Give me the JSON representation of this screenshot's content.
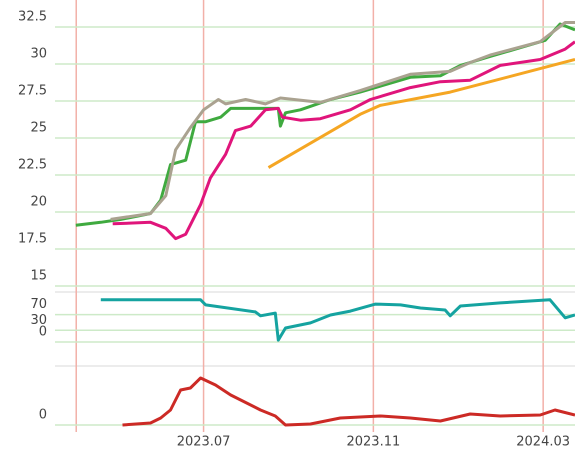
{
  "chart_data": [
    {
      "type": "line",
      "ylim": [
        14.73,
        34.32
      ],
      "yticks": [
        15,
        17.5,
        20,
        22.5,
        25,
        27.5,
        30,
        32.5
      ],
      "grid": true,
      "series": [
        {
          "color": "#3faa3f",
          "x": [
            2.99,
            3.58,
            4.05,
            4.75,
            4.99,
            5.22,
            5.58,
            5.81,
            6.05,
            6.4,
            6.64,
            7.34,
            7.76,
            7.81,
            7.93,
            8.28,
            8.99,
            9.69,
            10.16,
            10.87,
            11.58,
            12.05,
            12.75,
            13.46,
            14.05,
            14.4,
            14.75
          ],
          "values": [
            19.1,
            19.3,
            19.5,
            19.9,
            20.8,
            23.2,
            23.5,
            26.1,
            26.1,
            26.4,
            27.0,
            27.0,
            27.0,
            25.8,
            26.7,
            26.9,
            27.6,
            28.1,
            28.5,
            29.1,
            29.2,
            29.9,
            30.5,
            31.1,
            31.6,
            32.7,
            32.3
          ]
        },
        {
          "color": "#aaa290",
          "x": [
            3.81,
            4.75,
            5.11,
            5.34,
            5.69,
            6.0,
            6.35,
            6.52,
            6.99,
            7.46,
            7.81,
            8.75,
            9.69,
            10.87,
            11.81,
            12.28,
            12.75,
            13.93,
            14.52,
            14.75
          ],
          "values": [
            19.5,
            19.9,
            21.1,
            24.2,
            25.7,
            26.9,
            27.6,
            27.3,
            27.6,
            27.3,
            27.7,
            27.4,
            28.2,
            29.3,
            29.5,
            30.1,
            30.6,
            31.5,
            32.8,
            32.8
          ]
        },
        {
          "color": "#e0157b",
          "x": [
            3.86,
            4.75,
            5.11,
            5.34,
            5.58,
            5.93,
            6.16,
            6.52,
            6.75,
            7.11,
            7.46,
            7.76,
            7.86,
            8.28,
            8.75,
            9.46,
            9.93,
            10.87,
            11.58,
            12.28,
            12.99,
            13.93,
            14.52,
            14.75
          ],
          "values": [
            19.2,
            19.3,
            18.9,
            18.2,
            18.5,
            20.5,
            22.3,
            23.9,
            25.5,
            25.8,
            26.9,
            27.0,
            26.4,
            26.2,
            26.3,
            26.9,
            27.6,
            28.4,
            28.8,
            28.9,
            29.9,
            30.3,
            31.0,
            31.5
          ]
        },
        {
          "color": "#f5a623",
          "x": [
            7.53,
            9.69,
            10.16,
            11.81,
            14.75
          ],
          "values": [
            23.0,
            26.6,
            27.2,
            28.1,
            30.3
          ]
        }
      ]
    },
    {
      "type": "line",
      "ylim": [
        -51,
        133
      ],
      "yticks": [
        0,
        30,
        70
      ],
      "grid": true,
      "series": [
        {
          "color": "#15a3a0",
          "x": [
            3.58,
            5.93,
            6.05,
            7.22,
            7.34,
            7.69,
            7.76,
            7.93,
            8.52,
            8.99,
            9.46,
            10.05,
            10.64,
            11.11,
            11.69,
            11.81,
            12.05,
            12.99,
            14.16,
            14.52,
            14.75
          ],
          "values": [
            108,
            108,
            95,
            77,
            67,
            74,
            5,
            36,
            49,
            69,
            79,
            97,
            95,
            87,
            82,
            67,
            92,
            100,
            108,
            62,
            69
          ]
        }
      ]
    },
    {
      "type": "line",
      "ylim": [
        -2.5,
        15.75
      ],
      "yticks": [
        0
      ],
      "grid": true,
      "xlim": [
        2.5,
        14.75
      ],
      "xticks": [
        {
          "value": 3,
          "label": null
        },
        {
          "value": 6,
          "label": "2023.07"
        },
        {
          "value": 10,
          "label": "2023.11"
        },
        {
          "value": 14,
          "label": "2024.03"
        }
      ],
      "series": [
        {
          "color": "#cc2a25",
          "x": [
            4.09,
            4.75,
            4.99,
            5.22,
            5.46,
            5.69,
            5.93,
            6.28,
            6.64,
            7.34,
            7.69,
            7.93,
            8.52,
            9.22,
            10.16,
            10.87,
            11.58,
            12.28,
            12.99,
            13.93,
            14.28,
            14.75
          ],
          "values": [
            0,
            0.5,
            1.75,
            3.75,
            8.75,
            9.25,
            11.75,
            10,
            7.5,
            3.75,
            2.25,
            0,
            0.25,
            1.75,
            2.25,
            1.75,
            1,
            2.75,
            2.25,
            2.5,
            3.75,
            2.5
          ]
        }
      ]
    }
  ]
}
